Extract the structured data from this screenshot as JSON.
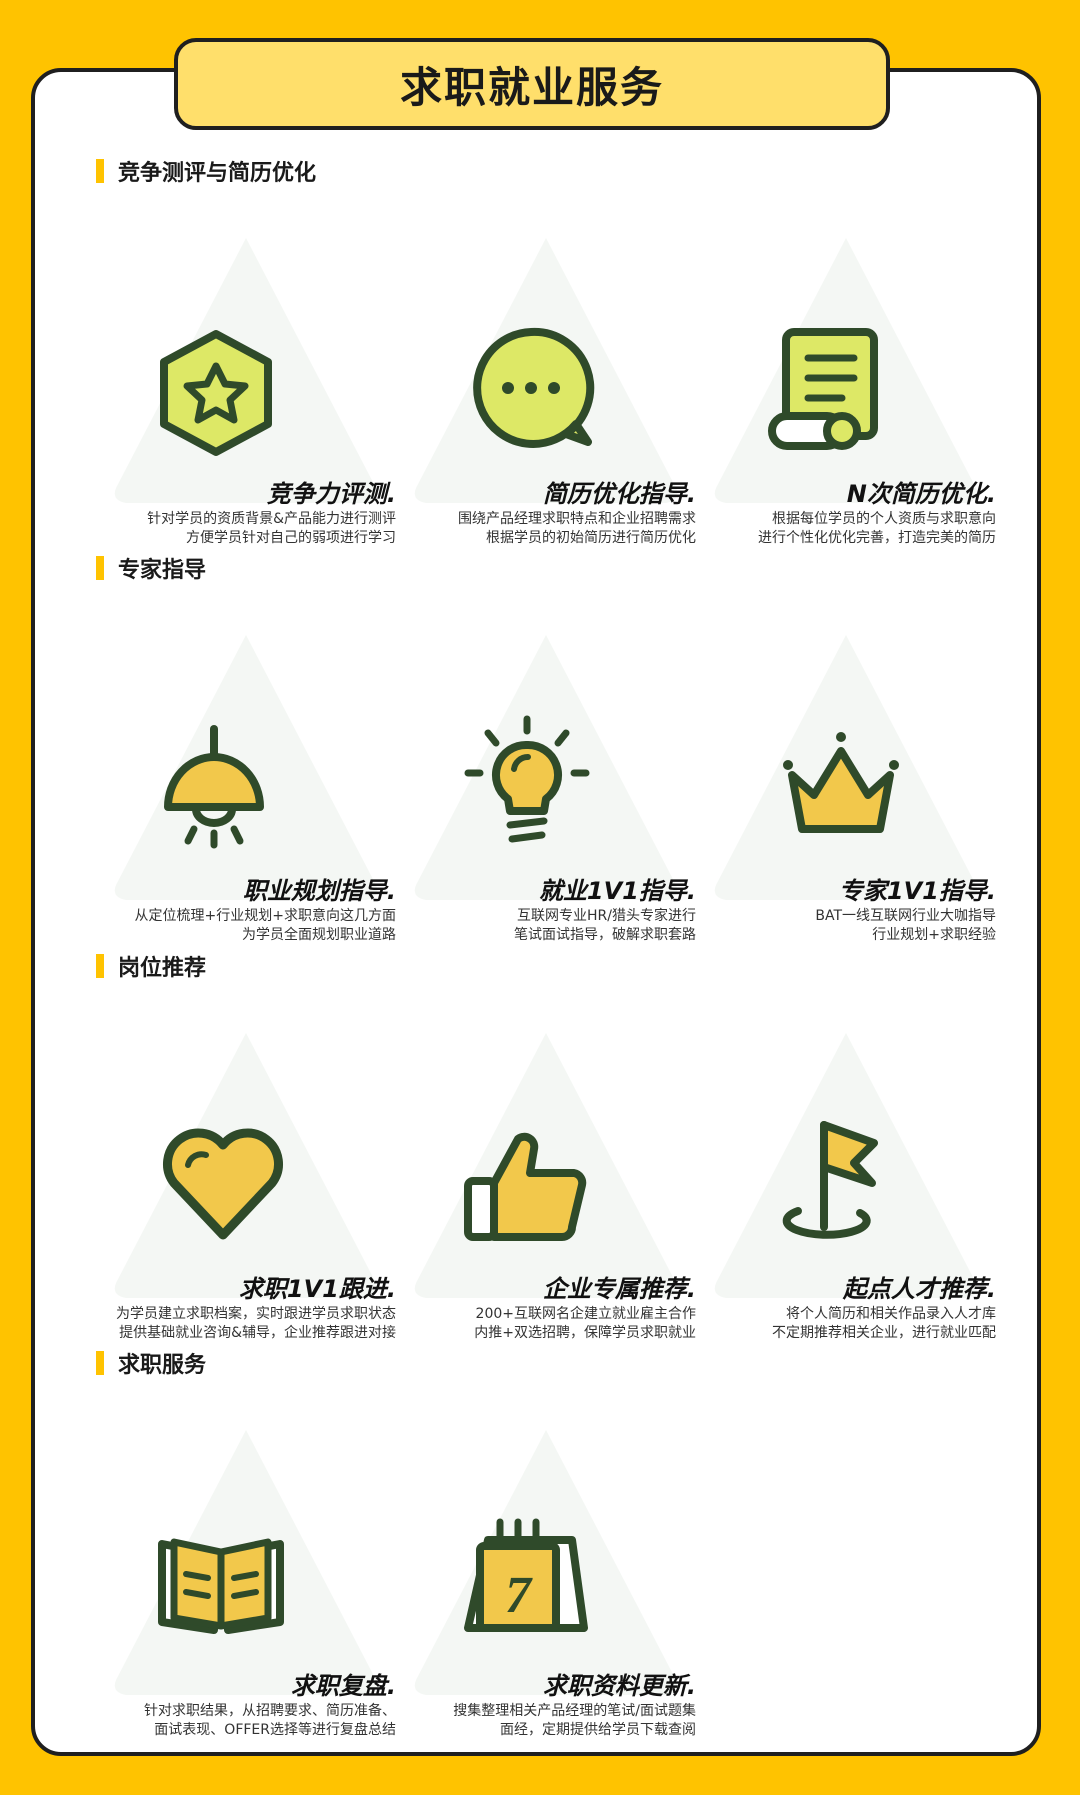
{
  "page": {
    "title": "求职就业服务"
  },
  "colors": {
    "accent": "#FFC300",
    "icon_stroke": "#2F4A2A",
    "icon_fill_lime": "#DDE866",
    "icon_fill_gold": "#F2C84B",
    "tab_fill": "#FFDF6B"
  },
  "sections": [
    {
      "title": "竞争测评与简历优化",
      "items": [
        {
          "icon": "star-badge-icon",
          "title": "竞争力评测.",
          "desc1": "针对学员的资质背景&产品能力进行测评",
          "desc2": "方便学员针对自己的弱项进行学习"
        },
        {
          "icon": "chat-bubble-icon",
          "title": "简历优化指导.",
          "desc1": "围绕产品经理求职特点和企业招聘需求",
          "desc2": "根据学员的初始简历进行简历优化"
        },
        {
          "icon": "scroll-document-icon",
          "title": "N次简历优化.",
          "desc1": "根据每位学员的个人资质与求职意向",
          "desc2": "进行个性化优化完善，打造完美的简历"
        }
      ]
    },
    {
      "title": "专家指导",
      "items": [
        {
          "icon": "lamp-icon",
          "title": "职业规划指导.",
          "desc1": "从定位梳理+行业规划+求职意向这几方面",
          "desc2": "为学员全面规划职业道路"
        },
        {
          "icon": "lightbulb-icon",
          "title": "就业1V1指导.",
          "desc1": "互联网专业HR/猎头专家进行",
          "desc2": "笔试面试指导，破解求职套路"
        },
        {
          "icon": "crown-icon",
          "title": "专家1V1指导.",
          "desc1": "BAT一线互联网行业大咖指导",
          "desc2": "行业规划+求职经验"
        }
      ]
    },
    {
      "title": "岗位推荐",
      "items": [
        {
          "icon": "heart-icon",
          "title": "求职1V1跟进.",
          "desc1": "为学员建立求职档案，实时跟进学员求职状态",
          "desc2": "提供基础就业咨询&辅导，企业推荐跟进对接"
        },
        {
          "icon": "thumbs-up-icon",
          "title": "企业专属推荐.",
          "desc1": "200+互联网名企建立就业雇主合作",
          "desc2": "内推+双选招聘，保障学员求职就业"
        },
        {
          "icon": "flag-icon",
          "title": "起点人才推荐.",
          "desc1": "将个人简历和相关作品录入人才库",
          "desc2": "不定期推荐相关企业，进行就业匹配"
        }
      ]
    },
    {
      "title": "求职服务",
      "items": [
        {
          "icon": "open-book-icon",
          "title": "求职复盘.",
          "desc1": "针对求职结果，从招聘要求、简历准备、",
          "desc2": "面试表现、OFFER选择等进行复盘总结"
        },
        {
          "icon": "calendar-icon",
          "calendar_number": "7",
          "title": "求职资料更新.",
          "desc1": "搜集整理相关产品经理的笔试/面试题集",
          "desc2": "面经，定期提供给学员下载查阅"
        }
      ]
    }
  ]
}
